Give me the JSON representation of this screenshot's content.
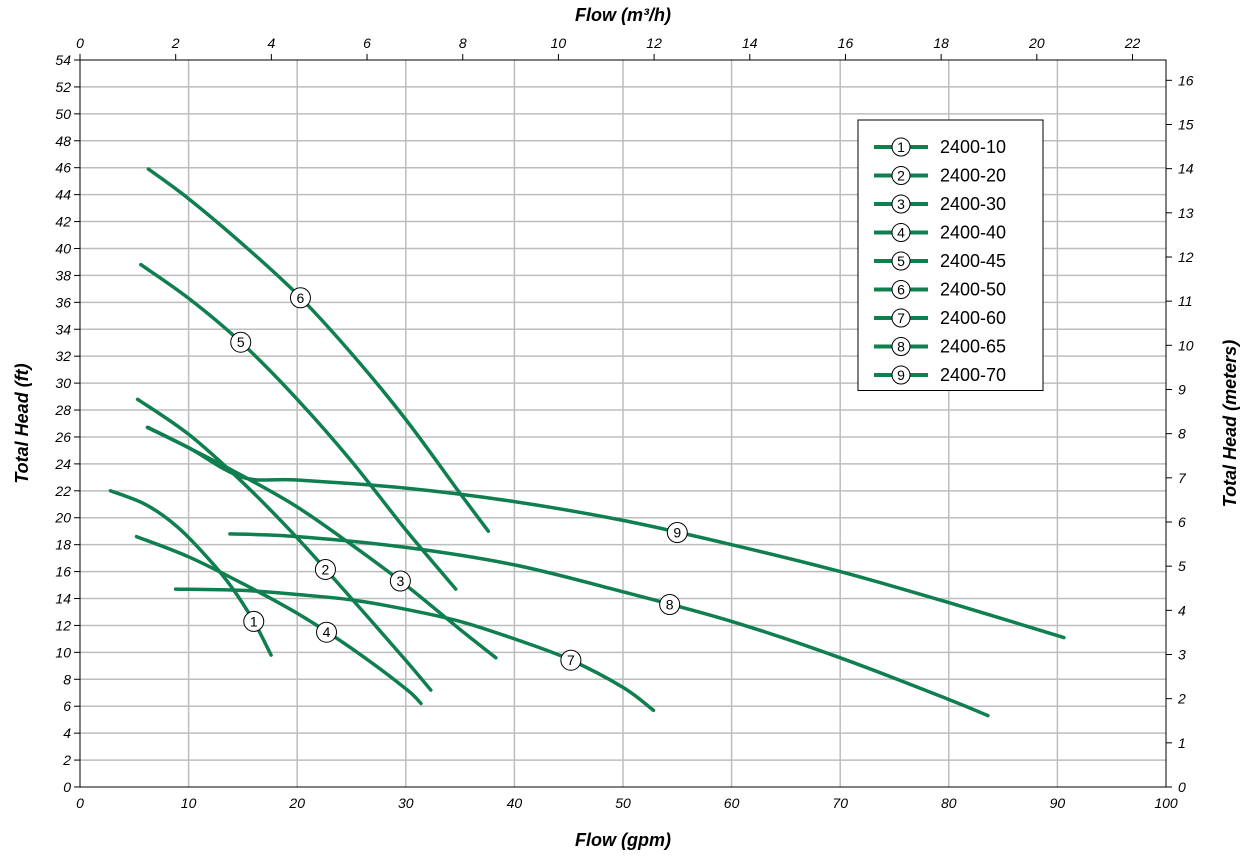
{
  "chart_data": {
    "type": "line",
    "xlabel": "Flow (gpm)",
    "x2label": "Flow (m³/h)",
    "ylabel": "Total Head (ft)",
    "y2label": "Total Head (meters)",
    "xlim": [
      0,
      100
    ],
    "ylim": [
      0,
      54
    ],
    "x2lim": [
      0,
      22.7
    ],
    "y2lim": [
      0,
      16.46
    ],
    "x_ticks": [
      0,
      10,
      20,
      30,
      40,
      50,
      60,
      70,
      80,
      90,
      100
    ],
    "y_ticks": [
      0,
      2,
      4,
      6,
      8,
      10,
      12,
      14,
      16,
      18,
      20,
      22,
      24,
      26,
      28,
      30,
      32,
      34,
      36,
      38,
      40,
      42,
      44,
      46,
      48,
      50,
      52,
      54
    ],
    "x2_ticks": [
      0,
      2,
      4,
      6,
      8,
      10,
      12,
      14,
      16,
      18,
      20,
      22
    ],
    "y2_ticks": [
      0,
      1,
      2,
      3,
      4,
      5,
      6,
      7,
      8,
      9,
      10,
      11,
      12,
      13,
      14,
      15,
      16
    ],
    "grid": true,
    "legend_position": "top-right",
    "line_color": "#0f7f4f",
    "series": [
      {
        "name": "2400-10",
        "marker": "1",
        "marker_x": 16,
        "x": [
          2.8,
          6,
          9,
          12,
          14,
          16,
          17.6
        ],
        "y": [
          22,
          21,
          19.3,
          16.8,
          14.8,
          12.3,
          9.8
        ]
      },
      {
        "name": "2400-20",
        "marker": "2",
        "marker_x": 22.6,
        "x": [
          5.3,
          10,
          15,
          20,
          25,
          30,
          32.3
        ],
        "y": [
          28.8,
          26.2,
          22.6,
          18.5,
          14,
          9.4,
          7.2
        ]
      },
      {
        "name": "2400-30",
        "marker": "3",
        "marker_x": 29.5,
        "x": [
          6.2,
          10,
          15,
          20,
          25,
          30,
          35,
          38.3
        ],
        "y": [
          26.7,
          25.2,
          23.1,
          20.8,
          18,
          15,
          11.7,
          9.6
        ]
      },
      {
        "name": "2400-40",
        "marker": "4",
        "marker_x": 22.7,
        "x": [
          5.2,
          10,
          15,
          20,
          25,
          30,
          31.4
        ],
        "y": [
          18.6,
          17.1,
          15.1,
          12.9,
          10.3,
          7.3,
          6.2
        ]
      },
      {
        "name": "2400-45",
        "marker": "5",
        "marker_x": 14.8,
        "x": [
          5.6,
          10,
          15,
          20,
          25,
          30,
          34.6
        ],
        "y": [
          38.8,
          36.3,
          32.9,
          28.8,
          24.2,
          19.1,
          14.7
        ]
      },
      {
        "name": "2400-50",
        "marker": "6",
        "marker_x": 20.3,
        "x": [
          6.3,
          10,
          15,
          20,
          25,
          30,
          35,
          37.6
        ],
        "y": [
          45.9,
          43.7,
          40.3,
          36.6,
          32.2,
          27.3,
          21.8,
          19
        ]
      },
      {
        "name": "2400-60",
        "marker": "7",
        "marker_x": 45.2,
        "x": [
          8.8,
          15,
          20,
          25,
          30,
          35,
          40,
          45,
          50,
          52.8
        ],
        "y": [
          14.7,
          14.6,
          14.3,
          13.9,
          13.2,
          12.3,
          11,
          9.5,
          7.4,
          5.7
        ]
      },
      {
        "name": "2400-65",
        "marker": "8",
        "marker_x": 54.3,
        "x": [
          13.8,
          20,
          30,
          40,
          50,
          60,
          70,
          80,
          83.6
        ],
        "y": [
          18.8,
          18.6,
          17.8,
          16.5,
          14.5,
          12.3,
          9.6,
          6.5,
          5.3
        ]
      },
      {
        "name": "2400-70",
        "marker": "9",
        "marker_x": 55,
        "x": [
          6.3,
          10,
          15,
          20,
          30,
          40,
          50,
          60,
          70,
          80,
          90.6
        ],
        "y": [
          26.7,
          25.2,
          23,
          22.8,
          22.2,
          21.2,
          19.8,
          18,
          16,
          13.7,
          11.1
        ]
      }
    ]
  }
}
